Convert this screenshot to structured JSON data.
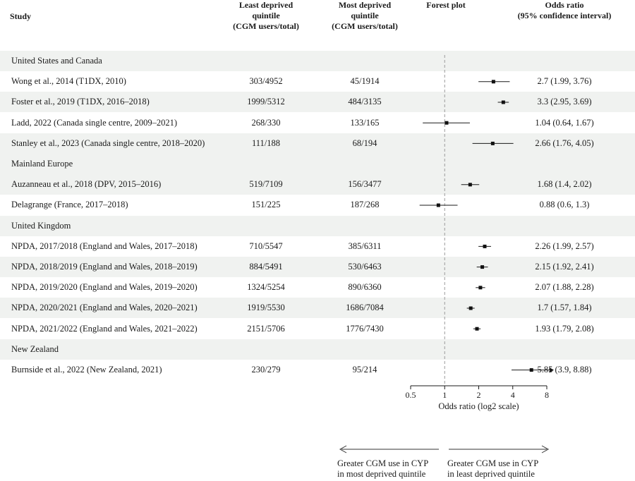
{
  "headers": {
    "study": "Study",
    "least_line1": "Least deprived",
    "least_line2": "quintile",
    "least_line3": "(CGM users/total)",
    "most_line1": "Most deprived",
    "most_line2": "quintile",
    "most_line3": "(CGM users/total)",
    "forest": "Forest plot",
    "or_line1": "Odds ratio",
    "or_line2": "(95% confidence interval)"
  },
  "chart_data": {
    "type": "forest",
    "x_scale": "log2",
    "xlabel": "Odds ratio (log2 scale)",
    "x_ticks": [
      0.5,
      1,
      2,
      4,
      8
    ],
    "x_tick_labels": [
      "0.5",
      "1",
      "2",
      "4",
      "8"
    ],
    "reference_line": 1,
    "groups": [
      {
        "name": "United States and Canada",
        "studies": [
          {
            "study": "Wong et al., 2014 (T1DX, 2010)",
            "least": "303/4952",
            "most": "45/1914",
            "or": 2.7,
            "lo": 1.99,
            "hi": 3.76,
            "label": "2.7 (1.99, 3.76)"
          },
          {
            "study": "Foster et al., 2019 (T1DX, 2016–2018)",
            "least": "1999/5312",
            "most": "484/3135",
            "or": 3.3,
            "lo": 2.95,
            "hi": 3.69,
            "label": "3.3 (2.95, 3.69)"
          },
          {
            "study": "Ladd, 2022 (Canada single centre, 2009–2021)",
            "least": "268/330",
            "most": "133/165",
            "or": 1.04,
            "lo": 0.64,
            "hi": 1.67,
            "label": "1.04 (0.64, 1.67)"
          },
          {
            "study": "Stanley et al., 2023 (Canada single centre, 2018–2020)",
            "least": "111/188",
            "most": "68/194",
            "or": 2.66,
            "lo": 1.76,
            "hi": 4.05,
            "label": "2.66 (1.76, 4.05)"
          }
        ]
      },
      {
        "name": "Mainland Europe",
        "studies": [
          {
            "study": "Auzanneau et al., 2018 (DPV, 2015–2016)",
            "least": "519/7109",
            "most": "156/3477",
            "or": 1.68,
            "lo": 1.4,
            "hi": 2.02,
            "label": "1.68 (1.4, 2.02)"
          },
          {
            "study": "Delagrange (France, 2017–2018)",
            "least": "151/225",
            "most": "187/268",
            "or": 0.88,
            "lo": 0.6,
            "hi": 1.3,
            "label": "0.88 (0.6, 1.3)"
          }
        ]
      },
      {
        "name": "United Kingdom",
        "studies": [
          {
            "study": "NPDA, 2017/2018 (England and Wales, 2017–2018)",
            "least": "710/5547",
            "most": "385/6311",
            "or": 2.26,
            "lo": 1.99,
            "hi": 2.57,
            "label": "2.26 (1.99, 2.57)"
          },
          {
            "study": "NPDA, 2018/2019 (England and Wales, 2018–2019)",
            "least": "884/5491",
            "most": "530/6463",
            "or": 2.15,
            "lo": 1.92,
            "hi": 2.41,
            "label": "2.15 (1.92, 2.41)"
          },
          {
            "study": "NPDA, 2019/2020 (England and Wales, 2019–2020)",
            "least": "1324/5254",
            "most": "890/6360",
            "or": 2.07,
            "lo": 1.88,
            "hi": 2.28,
            "label": "2.07 (1.88, 2.28)"
          },
          {
            "study": "NPDA, 2020/2021 (England and Wales, 2020–2021)",
            "least": "1919/5530",
            "most": "1686/7084",
            "or": 1.7,
            "lo": 1.57,
            "hi": 1.84,
            "label": "1.7 (1.57, 1.84)"
          },
          {
            "study": "NPDA, 2021/2022 (England and Wales, 2021–2022)",
            "least": "2151/5706",
            "most": "1776/7430",
            "or": 1.93,
            "lo": 1.79,
            "hi": 2.08,
            "label": "1.93 (1.79, 2.08)"
          }
        ]
      },
      {
        "name": "New Zealand",
        "studies": [
          {
            "study": "Burnside et al., 2022 (New Zealand, 2021)",
            "least": "230/279",
            "most": "95/214",
            "or": 5.85,
            "lo": 3.9,
            "hi": 8.88,
            "label": "5.85 (3.9, 8.88)",
            "ci_truncated": true
          }
        ]
      }
    ],
    "direction_left_line1": "Greater CGM use in CYP",
    "direction_left_line2": "in most deprived quintile",
    "direction_right_line1": "Greater CGM use in CYP",
    "direction_right_line2": "in least deprived quintile"
  }
}
